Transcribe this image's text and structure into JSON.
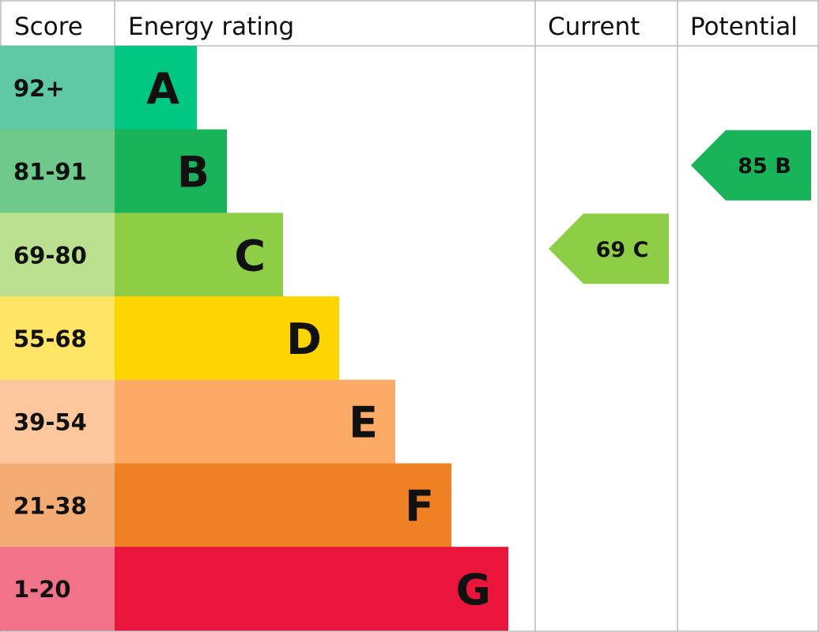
{
  "chart_data": {
    "type": "bar",
    "headers": {
      "score": "Score",
      "rating": "Energy rating",
      "current": "Current",
      "potential": "Potential"
    },
    "bands": [
      {
        "score": "92+",
        "letter": "A",
        "color": "#00c781",
        "score_color": "#5fc8a5"
      },
      {
        "score": "81-91",
        "letter": "B",
        "color": "#19b459",
        "score_color": "#6fc98a"
      },
      {
        "score": "69-80",
        "letter": "C",
        "color": "#8dce46",
        "score_color": "#badf8f"
      },
      {
        "score": "55-68",
        "letter": "D",
        "color": "#ffd500",
        "score_color": "#ffe566"
      },
      {
        "score": "39-54",
        "letter": "E",
        "color": "#fcaa65",
        "score_color": "#fdc79e"
      },
      {
        "score": "21-38",
        "letter": "F",
        "color": "#ef8023",
        "score_color": "#f3ad74"
      },
      {
        "score": "1-20",
        "letter": "G",
        "color": "#e9153b",
        "score_color": "#f1738a"
      }
    ],
    "current": {
      "value": 69,
      "letter": "C",
      "label": "69 C",
      "color": "#8dce46"
    },
    "potential": {
      "value": 85,
      "letter": "B",
      "label": "85 B",
      "color": "#19b459"
    }
  }
}
